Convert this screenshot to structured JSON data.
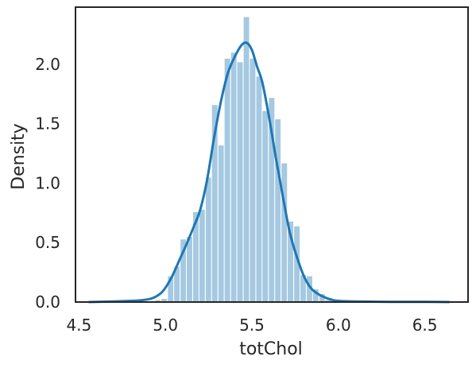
{
  "chart_data": {
    "type": "histogram",
    "title": "",
    "xlabel": "totChol",
    "ylabel": "Density",
    "xlim": [
      4.48,
      6.75
    ],
    "ylim": [
      0.0,
      2.48
    ],
    "xticks": [
      4.5,
      5.0,
      5.5,
      6.0,
      6.5
    ],
    "xtick_labels": [
      "4.5",
      "5.0",
      "5.5",
      "6.0",
      "6.5"
    ],
    "yticks": [
      0.0,
      0.5,
      1.0,
      1.5,
      2.0
    ],
    "ytick_labels": [
      "0.0",
      "0.5",
      "1.0",
      "1.5",
      "2.0"
    ],
    "grid": false,
    "bin_width": 0.0365,
    "bins": [
      {
        "x0": 4.939,
        "value": 0.02
      },
      {
        "x0": 4.975,
        "value": 0.03
      },
      {
        "x0": 5.012,
        "value": 0.22
      },
      {
        "x0": 5.048,
        "value": 0.3
      },
      {
        "x0": 5.085,
        "value": 0.53
      },
      {
        "x0": 5.121,
        "value": 0.55
      },
      {
        "x0": 5.158,
        "value": 0.76
      },
      {
        "x0": 5.194,
        "value": 0.78
      },
      {
        "x0": 5.231,
        "value": 1.05
      },
      {
        "x0": 5.267,
        "value": 1.66
      },
      {
        "x0": 5.304,
        "value": 1.32
      },
      {
        "x0": 5.34,
        "value": 2.05
      },
      {
        "x0": 5.377,
        "value": 2.1
      },
      {
        "x0": 5.413,
        "value": 2.02
      },
      {
        "x0": 5.45,
        "value": 2.4
      },
      {
        "x0": 5.486,
        "value": 2.05
      },
      {
        "x0": 5.523,
        "value": 1.9
      },
      {
        "x0": 5.559,
        "value": 1.61
      },
      {
        "x0": 5.596,
        "value": 1.72
      },
      {
        "x0": 5.632,
        "value": 1.54
      },
      {
        "x0": 5.669,
        "value": 1.17
      },
      {
        "x0": 5.705,
        "value": 0.68
      },
      {
        "x0": 5.742,
        "value": 0.64
      },
      {
        "x0": 5.778,
        "value": 0.23
      },
      {
        "x0": 5.815,
        "value": 0.22
      },
      {
        "x0": 5.851,
        "value": 0.11
      },
      {
        "x0": 5.888,
        "value": 0.07
      },
      {
        "x0": 5.924,
        "value": 0.02
      }
    ],
    "kde": {
      "x": [
        4.56,
        4.7,
        4.8,
        4.86,
        4.92,
        4.97,
        5.0,
        5.04,
        5.08,
        5.12,
        5.16,
        5.2,
        5.24,
        5.28,
        5.32,
        5.36,
        5.4,
        5.44,
        5.47,
        5.5,
        5.53,
        5.56,
        5.6,
        5.64,
        5.68,
        5.72,
        5.76,
        5.8,
        5.84,
        5.88,
        5.92,
        5.96,
        6.0,
        6.1,
        6.3,
        6.5,
        6.64
      ],
      "y": [
        0.0,
        0.005,
        0.01,
        0.015,
        0.03,
        0.07,
        0.12,
        0.22,
        0.35,
        0.48,
        0.62,
        0.77,
        1.02,
        1.37,
        1.68,
        1.92,
        2.06,
        2.16,
        2.18,
        2.12,
        1.98,
        1.85,
        1.55,
        1.2,
        0.88,
        0.58,
        0.38,
        0.22,
        0.12,
        0.07,
        0.04,
        0.02,
        0.01,
        0.005,
        0.002,
        0.002,
        0.0
      ]
    },
    "colors": {
      "bar_fill": "#1f77b4",
      "bar_alpha": 0.4,
      "bar_edge": "#ffffff",
      "kde_line": "#1f77b4",
      "spine": "#262626"
    }
  }
}
